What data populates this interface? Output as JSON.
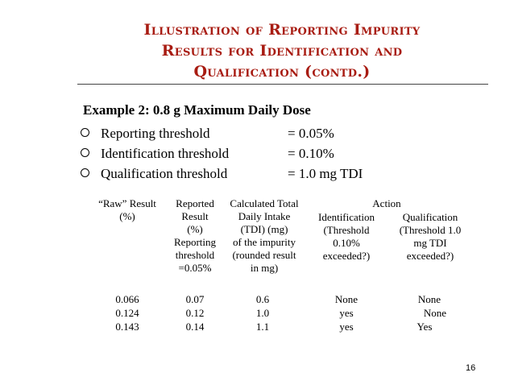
{
  "slide": {
    "title_lines": [
      "Illustration of Reporting Impurity",
      "Results for Identification and",
      "Qualification (contd.)"
    ],
    "example_heading": "Example 2: 0.8 g Maximum Daily Dose",
    "bullets": [
      {
        "label": "Reporting threshold",
        "value": "= 0.05%"
      },
      {
        "label": "Identification threshold",
        "value": "= 0.10%"
      },
      {
        "label": "Qualification threshold",
        "value": "= 1.0 mg TDI"
      }
    ],
    "page_number": "16",
    "title_color": "#a81c12"
  },
  "table": {
    "headers": {
      "raw": [
        "“Raw” Result",
        "(%)"
      ],
      "reported": [
        "Reported",
        "Result",
        "(%)",
        "Reporting",
        "threshold",
        "=0.05%"
      ],
      "tdi": [
        "Calculated Total",
        "Daily Intake",
        "(TDI) (mg)",
        "of the impurity",
        "(rounded result",
        "in mg)"
      ],
      "action": "Action",
      "identification": [
        "Identification",
        "(Threshold",
        "0.10%",
        "exceeded?)"
      ],
      "qualification": [
        "Qualification",
        "(Threshold 1.0",
        "mg TDI",
        "exceeded?)"
      ]
    },
    "rows": [
      {
        "raw": "0.066",
        "reported": "0.07",
        "tdi": "0.6",
        "identification": "None",
        "qualification": "None"
      },
      {
        "raw": "0.124",
        "reported": "0.12",
        "tdi": "1.0",
        "identification": "yes",
        "qualification": "None"
      },
      {
        "raw": "0.143",
        "reported": "0.14",
        "tdi": "1.1",
        "identification": "yes",
        "qualification": "Yes"
      }
    ]
  }
}
